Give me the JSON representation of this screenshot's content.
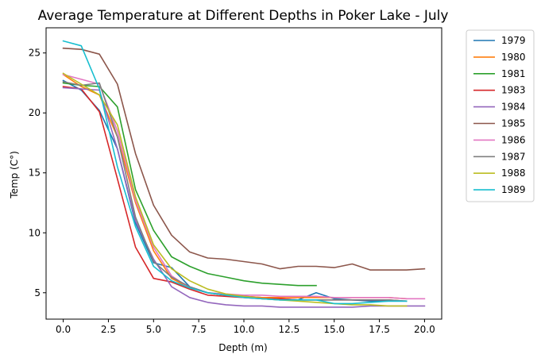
{
  "chart_data": {
    "type": "line",
    "title": "Average Temperature at Different Depths in Poker Lake - July",
    "xlabel": "Depth (m)",
    "ylabel": "Temp (C°)",
    "xlim": [
      -0.95,
      20.95
    ],
    "ylim": [
      2.8,
      27.1
    ],
    "xticks": [
      0.0,
      2.5,
      5.0,
      7.5,
      10.0,
      12.5,
      15.0,
      17.5,
      20.0
    ],
    "xtick_labels": [
      "0.0",
      "2.5",
      "5.0",
      "7.5",
      "10.0",
      "12.5",
      "15.0",
      "17.5",
      "20.0"
    ],
    "yticks": [
      5,
      10,
      15,
      20,
      25
    ],
    "ytick_labels": [
      "5",
      "10",
      "15",
      "20",
      "25"
    ],
    "grid": false,
    "legend_position": "outside-top-right",
    "series": [
      {
        "name": "1979",
        "color": "#1f77b4",
        "x": [
          0,
          1,
          2,
          3,
          4,
          5,
          6,
          7,
          8,
          9,
          10,
          11,
          12,
          13,
          14,
          15,
          16,
          17,
          18,
          19
        ],
        "y": [
          22.7,
          21.9,
          20.2,
          17.0,
          10.8,
          7.5,
          7.1,
          5.5,
          5.0,
          4.8,
          4.7,
          4.6,
          4.5,
          4.4,
          5.0,
          4.5,
          4.4,
          4.3,
          4.3,
          4.3
        ]
      },
      {
        "name": "1980",
        "color": "#ff7f0e",
        "x": [
          0,
          1,
          2,
          3,
          4,
          5,
          6,
          7,
          8,
          9,
          10,
          11,
          12,
          13,
          14,
          15,
          16,
          17,
          18,
          19
        ],
        "y": [
          23.2,
          22.2,
          21.5,
          18.0,
          12.5,
          8.5,
          6.2,
          5.4,
          5.0,
          4.8,
          4.7,
          4.6,
          4.6,
          4.6,
          4.6,
          4.6,
          4.6,
          4.6,
          4.6,
          4.5
        ]
      },
      {
        "name": "1981",
        "color": "#2ca02c",
        "x": [
          0,
          1,
          2,
          3,
          4,
          5,
          6,
          7,
          8,
          9,
          10,
          11,
          12,
          13,
          14
        ],
        "y": [
          22.5,
          22.3,
          22.2,
          20.5,
          13.6,
          10.2,
          8.0,
          7.2,
          6.6,
          6.3,
          6.0,
          5.8,
          5.7,
          5.6,
          5.6
        ]
      },
      {
        "name": "1983",
        "color": "#d62728",
        "x": [
          0,
          1,
          2,
          3,
          4,
          5,
          6,
          7,
          8,
          9,
          10,
          11,
          12,
          13,
          14,
          15,
          16,
          17,
          18,
          19
        ],
        "y": [
          22.2,
          22.0,
          20.1,
          14.5,
          8.8,
          6.2,
          5.9,
          5.3,
          4.8,
          4.7,
          4.6,
          4.5,
          4.5,
          4.4,
          4.4,
          4.4,
          4.4,
          4.4,
          4.4,
          4.3
        ]
      },
      {
        "name": "1984",
        "color": "#9467bd",
        "x": [
          0,
          1,
          2,
          3,
          4,
          5,
          6,
          7,
          8,
          9,
          10,
          11,
          12,
          13,
          14,
          15,
          16,
          17,
          18,
          19,
          20
        ],
        "y": [
          22.1,
          22.0,
          21.9,
          17.0,
          11.0,
          7.8,
          5.5,
          4.6,
          4.2,
          4.0,
          3.9,
          3.9,
          3.8,
          3.8,
          3.8,
          3.8,
          3.8,
          3.9,
          3.9,
          3.9,
          3.9
        ]
      },
      {
        "name": "1985",
        "color": "#8c564b",
        "x": [
          0,
          1,
          2,
          3,
          4,
          5,
          6,
          7,
          8,
          9,
          10,
          11,
          12,
          13,
          14,
          15,
          16,
          17,
          18,
          19,
          20
        ],
        "y": [
          25.4,
          25.3,
          24.9,
          22.4,
          16.6,
          12.3,
          9.8,
          8.4,
          7.9,
          7.8,
          7.6,
          7.4,
          7.0,
          7.2,
          7.2,
          7.1,
          7.4,
          6.9,
          6.9,
          6.9,
          7.0
        ]
      },
      {
        "name": "1986",
        "color": "#e377c2",
        "x": [
          0,
          1,
          2,
          3,
          4,
          5,
          6,
          7,
          8,
          9,
          10,
          11,
          12,
          13,
          14,
          15,
          16,
          17,
          18,
          19,
          20
        ],
        "y": [
          23.2,
          22.8,
          22.4,
          18.5,
          12.7,
          8.8,
          6.4,
          5.4,
          5.0,
          4.9,
          4.8,
          4.8,
          4.7,
          4.7,
          4.7,
          4.6,
          4.6,
          4.6,
          4.6,
          4.5,
          4.5
        ]
      },
      {
        "name": "1987",
        "color": "#7f7f7f",
        "x": [
          0,
          1,
          2,
          3,
          4,
          5,
          6,
          7,
          8,
          9,
          10,
          11,
          12,
          13,
          14,
          15,
          16,
          17,
          18,
          19
        ],
        "y": [
          22.6,
          22.3,
          22.5,
          18.0,
          11.3,
          7.6,
          6.3,
          5.5,
          5.0,
          4.8,
          4.7,
          4.5,
          4.4,
          4.4,
          4.4,
          4.4,
          4.4,
          4.4,
          4.4,
          4.3
        ]
      },
      {
        "name": "1988",
        "color": "#bcbd22",
        "x": [
          0,
          1,
          2,
          3,
          4,
          5,
          6,
          7,
          8,
          9,
          10,
          11,
          12,
          13,
          14,
          15,
          16,
          17,
          18,
          19
        ],
        "y": [
          23.3,
          22.4,
          21.5,
          19.0,
          13.0,
          9.0,
          7.0,
          6.0,
          5.3,
          4.9,
          4.7,
          4.5,
          4.4,
          4.3,
          4.2,
          4.1,
          4.0,
          4.0,
          3.9,
          3.9
        ]
      },
      {
        "name": "1989",
        "color": "#17becf",
        "x": [
          0,
          1,
          2,
          3,
          4,
          5,
          6,
          7,
          8,
          9,
          10,
          11,
          12,
          13,
          14,
          15,
          16,
          17,
          18,
          19
        ],
        "y": [
          26.0,
          25.6,
          22.0,
          15.5,
          10.5,
          7.2,
          6.0,
          5.4,
          5.0,
          4.8,
          4.6,
          4.5,
          4.4,
          4.4,
          4.4,
          4.1,
          4.1,
          4.2,
          4.3,
          4.3
        ]
      }
    ]
  }
}
